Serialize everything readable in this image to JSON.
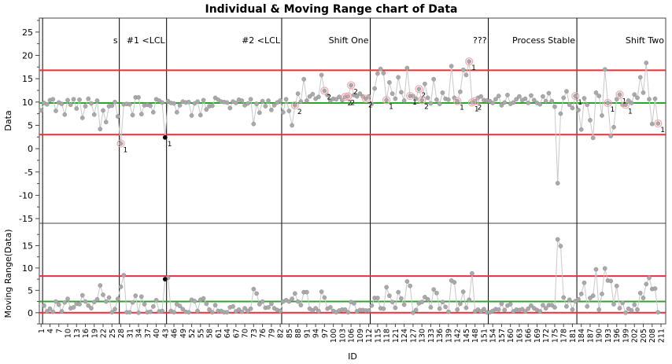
{
  "chart_data": [
    {
      "type": "line",
      "title": "Individual & Moving Range chart of Data",
      "ylabel": "Data",
      "xlabel": "ID",
      "ylim": [
        -16,
        28
      ],
      "yticks": [
        -15,
        -10,
        -5,
        0,
        5,
        10,
        15,
        20,
        25
      ],
      "limits": {
        "ucl": 16.8,
        "center": 9.8,
        "lcl": 3.0
      },
      "limit_colors": {
        "ucl": "#e8303a",
        "center": "#2ca52c",
        "lcl": "#e8303a"
      },
      "phases": [
        {
          "label": "s",
          "start": 1
        },
        {
          "label": "#1 <LCL",
          "start": 28
        },
        {
          "label": "#2 <LCL",
          "start": 44
        },
        {
          "label": "Shift One",
          "start": 83
        },
        {
          "label": "???",
          "start": 113
        },
        {
          "label": "Process Stable",
          "start": 153
        },
        {
          "label": "Shift Two",
          "start": 183
        }
      ],
      "series": [
        {
          "x_start": 1,
          "values": [
            8.2,
            9.8,
            9.5,
            10.4,
            10.6,
            8.1,
            9.9,
            9.6,
            7.3,
            10.4,
            9.4,
            10.6,
            8.6,
            10.5,
            6.6,
            9.1,
            10.7,
            9.7,
            7.3,
            10.3,
            4.2,
            8.2,
            5.7,
            9.1,
            9.2,
            10,
            6.9,
            1.1,
            9.5,
            9.6,
            9.5,
            7.2,
            11,
            11,
            7.4,
            9.3,
            9.4,
            9.2,
            7.8,
            10.6,
            10.3,
            9.9,
            2.4,
            10.2,
            9.8,
            9.7,
            7.8,
            9.3,
            10.1,
            9.9,
            10,
            7.1,
            9.7,
            10.1,
            7.2,
            10.4,
            8.4,
            9.1,
            9.2,
            10.9,
            10.5,
            10.1,
            10,
            9.9,
            8.7,
            10.1,
            9.8,
            10.5,
            10.3,
            9.3,
            9.7,
            10.6,
            5.3,
            9.6,
            7.7,
            10.2,
            9.1,
            10.3,
            8.3,
            9.3,
            9.9,
            10.3,
            7.8,
            10.6,
            8.1,
            5,
            9.3,
            11.8,
            10.1,
            14.9,
            10.3,
            11.2,
            11.7,
            10.7,
            11.1,
            15.8,
            12.4,
            11.5,
            10.3,
            10.7,
            10.6,
            11.1,
            10.4,
            11.1,
            11.2,
            13.6,
            11.5,
            11.2,
            11.8,
            11.2,
            10.7,
            11.2,
            9.6,
            12.9,
            16.1,
            17.1,
            16.2,
            10.4,
            14.2,
            11.8,
            10.7,
            15.3,
            12.1,
            10.3,
            17.3,
            11.3,
            11.3,
            10.7,
            12.8,
            10.4,
            13.9,
            10.9,
            9.7,
            14.9,
            10.5,
            9.6,
            12,
            10.7,
            10.5,
            17.7,
            10.9,
            10.2,
            12.2,
            16.9,
            15.8,
            18.7,
            9.9,
            10.2,
            10.9,
            11.2,
            10.4,
            10.3,
            10.2,
            9.8,
            10.6,
            11.3,
            9.3,
            9.9,
            11.5,
            9.6,
            9.9,
            10.6,
            11.2,
            10.4,
            10.7,
            9.8,
            11.4,
            10.4,
            9.8,
            9.5,
            11.2,
            10.2,
            11.9,
            10.2,
            9,
            -7.4,
            7.5,
            10.9,
            12.3,
            9.4,
            8.7,
            11.3,
            8.3,
            4.1,
            10.8,
            9.4,
            6.1,
            2.3,
            12,
            11.3,
            7.1,
            17,
            9.8,
            2.7,
            4.6,
            10.6,
            11.6,
            9.4,
            9.4,
            10.3,
            9.8,
            11.6,
            10.9,
            15.3,
            12,
            18.4,
            10.6,
            5.3,
            10.7,
            5.4
          ],
          "color": "#a9a9a9"
        }
      ],
      "flagged_points": [
        {
          "x": 28,
          "label": "1"
        },
        {
          "x": 43,
          "label": "1"
        },
        {
          "x": 87,
          "label": "2"
        },
        {
          "x": 97,
          "label": "2"
        },
        {
          "x": 104,
          "label": "2"
        },
        {
          "x": 105,
          "label": "2"
        },
        {
          "x": 106,
          "label": "2"
        },
        {
          "x": 111,
          "label": "2"
        },
        {
          "x": 118,
          "label": "1"
        },
        {
          "x": 126,
          "label": "1"
        },
        {
          "x": 129,
          "label": "2"
        },
        {
          "x": 130,
          "label": "2"
        },
        {
          "x": 142,
          "label": "1"
        },
        {
          "x": 146,
          "label": "1"
        },
        {
          "x": 147,
          "label": "1"
        },
        {
          "x": 148,
          "label": "2"
        },
        {
          "x": 182,
          "label": "1"
        },
        {
          "x": 193,
          "label": "1"
        },
        {
          "x": 197,
          "label": "1"
        },
        {
          "x": 199,
          "label": "1"
        },
        {
          "x": 210,
          "label": "1"
        }
      ]
    },
    {
      "type": "line",
      "ylabel": "Moving Range(Data)",
      "ylim": [
        -2.5,
        20
      ],
      "yticks": [
        0,
        5,
        10,
        15
      ],
      "limits": {
        "ucl": 8.2,
        "center": 2.5,
        "lcl": 0
      },
      "limit_colors": {
        "ucl": "#e8303a",
        "center": "#2ca52c",
        "lcl": "#e8303a"
      },
      "x_start": 2,
      "values": [
        1.6,
        0.3,
        0.9,
        0.2,
        2.5,
        1.8,
        0.3,
        2.3,
        3.1,
        1,
        1.2,
        2,
        1.9,
        3.9,
        2.5,
        1.6,
        1,
        2.4,
        3,
        6.1,
        4,
        2.5,
        3.4,
        0.1,
        0.8,
        3.1,
        5.8,
        8.4,
        0.1,
        0.1,
        2.3,
        3.8,
        0,
        3.6,
        1.9,
        0.1,
        0.2,
        1.4,
        2.8,
        0.3,
        0.4,
        7.5,
        7.8,
        0.4,
        0.1,
        1.9,
        1.5,
        0.8,
        0.2,
        0.1,
        2.9,
        2.6,
        0.4,
        2.9,
        3.2,
        2,
        0.7,
        0.1,
        1.7,
        0.4,
        0.4,
        0.1,
        0.1,
        1.2,
        1.4,
        0.3,
        0.7,
        0.2,
        1,
        0.4,
        0.9,
        5.3,
        4.3,
        1.9,
        2.5,
        1.1,
        1.2,
        2,
        1,
        0.6,
        0.4,
        2.5,
        2.8,
        2.5,
        3.1,
        4.3,
        2.5,
        1.7,
        4.6,
        4.6,
        0.9,
        0.5,
        1,
        0.4,
        4.7,
        3.4,
        0.9,
        1.2,
        0.4,
        0.1,
        0.5,
        0.7,
        0.7,
        0.1,
        2.4,
        2.1,
        0.3,
        0.6,
        0.6,
        0.5,
        0.5,
        1.6,
        3.3,
        3.3,
        1,
        0.9,
        5.7,
        3.8,
        2.4,
        1.1,
        4.6,
        3.2,
        1.8,
        7,
        6,
        0,
        0.6,
        2.1,
        2.4,
        3.5,
        3,
        1.2,
        5.2,
        4.4,
        0.9,
        2.4,
        1.3,
        0.2,
        7.2,
        6.8,
        0.7,
        2,
        4.7,
        1.1,
        2.9,
        8.8,
        0.3,
        0.7,
        0.3,
        0.8,
        0.1,
        0.1,
        0.4,
        0.8,
        0.7,
        2,
        0.6,
        1.6,
        1.9,
        0.3,
        0.7,
        0.6,
        0.8,
        0.3,
        0.9,
        1.6,
        1,
        0.6,
        0.3,
        1.7,
        1,
        1.7,
        1.7,
        1.2,
        16.4,
        14.9,
        3.4,
        1.4,
        2.9,
        0.7,
        2.6,
        3,
        4.2,
        6.7,
        1.4,
        3.3,
        3.8,
        9.7,
        0.7,
        4.2,
        9.9,
        7.2,
        7.1,
        1.9,
        6,
        1,
        2.2,
        0,
        0.9,
        0.5,
        1.8,
        0.7,
        4.4,
        3.3,
        6.4,
        7.8,
        5.3,
        5.4,
        0.1
      ],
      "color": "#a9a9a9",
      "flagged_points": [
        {
          "x": 43,
          "label": ""
        }
      ]
    }
  ],
  "x_axis": {
    "label": "ID",
    "range": [
      1,
      212
    ],
    "ticks": [
      1,
      4,
      7,
      10,
      13,
      16,
      19,
      22,
      25,
      28,
      31,
      34,
      37,
      40,
      43,
      46,
      49,
      52,
      55,
      58,
      61,
      64,
      67,
      70,
      73,
      76,
      79,
      82,
      85,
      88,
      91,
      94,
      97,
      100,
      103,
      106,
      109,
      112,
      115,
      118,
      121,
      124,
      127,
      130,
      133,
      136,
      139,
      142,
      145,
      148,
      151,
      154,
      157,
      160,
      163,
      166,
      169,
      172,
      175,
      178,
      181,
      184,
      187,
      190,
      193,
      196,
      199,
      202,
      205,
      208,
      211
    ]
  },
  "title": "Individual & Moving Range chart of Data"
}
